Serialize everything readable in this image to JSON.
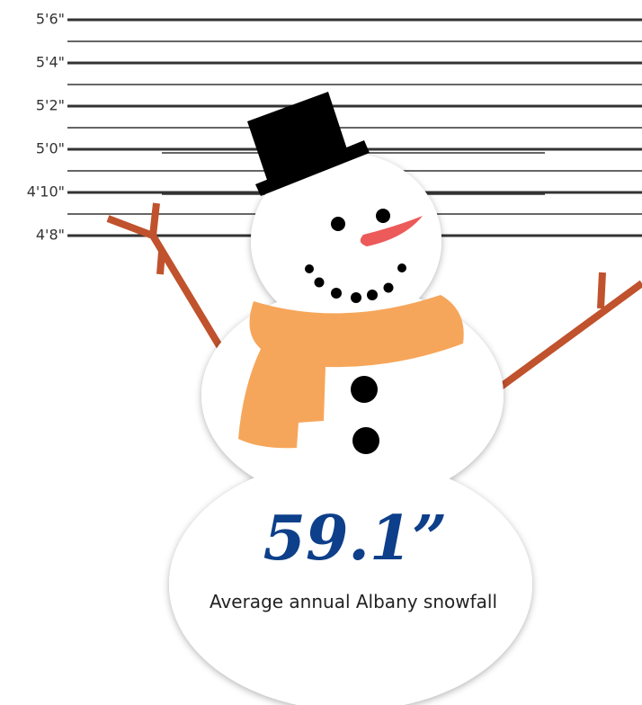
{
  "height_marks": {
    "labels": [
      "5'6\"",
      "5'4\"",
      "5'2\"",
      "5'0\"",
      "4'10\"",
      "4'8\""
    ]
  },
  "stat": {
    "value": "59.1”",
    "caption": "Average annual Albany snowfall"
  }
}
